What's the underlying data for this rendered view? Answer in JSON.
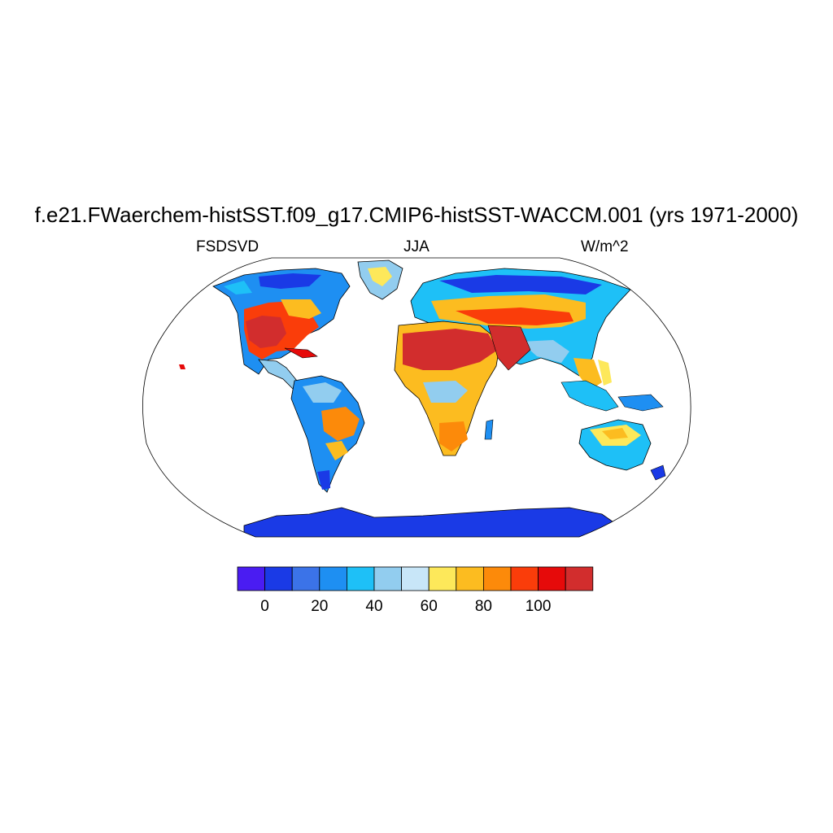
{
  "title": "f.e21.FWaerchem-histSST.f09_g17.CMIP6-histSST-WACCM.001 (yrs 1971-2000)",
  "left_label": "FSDSVD",
  "center_label": "JJA",
  "right_label": "W/m^2",
  "map": {
    "projection": "robinson",
    "field": "FSDSVD",
    "season": "JJA",
    "units": "W/m^2",
    "land_only": true,
    "coastlines": true
  },
  "colorbar": {
    "orientation": "horizontal",
    "colors": [
      "#4a1cf2",
      "#1a3ae6",
      "#3b73e8",
      "#1e8ff2",
      "#1ec0f7",
      "#92cdef",
      "#c8e6f8",
      "#fde85a",
      "#fcbc20",
      "#fc8a0a",
      "#fa3d0a",
      "#e60a0a",
      "#d22d2d"
    ],
    "tick_labels": [
      "0",
      "20",
      "40",
      "60",
      "80",
      "100"
    ]
  },
  "chart_data": {
    "type": "heatmap",
    "title": "f.e21.FWaerchem-histSST.f09_g17.CMIP6-histSST-WACCM.001 (yrs 1971-2000)",
    "variable": "FSDSVD",
    "season": "JJA",
    "units": "W/m^2",
    "levels": [
      -10,
      0,
      10,
      20,
      30,
      40,
      50,
      60,
      70,
      80,
      90,
      100,
      110
    ],
    "level_ticks": [
      0,
      20,
      40,
      60,
      80,
      100
    ],
    "regions": [
      {
        "name": "Antarctica",
        "value": 5
      },
      {
        "name": "Greenland",
        "value": 55
      },
      {
        "name": "Sahara",
        "value": 115
      },
      {
        "name": "Arabian Peninsula",
        "value": 115
      },
      {
        "name": "Southwestern United States",
        "value": 105
      },
      {
        "name": "Southern Africa",
        "value": 80
      },
      {
        "name": "Australia",
        "value": 45
      },
      {
        "name": "Amazon Basin",
        "value": 30
      }
    ]
  }
}
